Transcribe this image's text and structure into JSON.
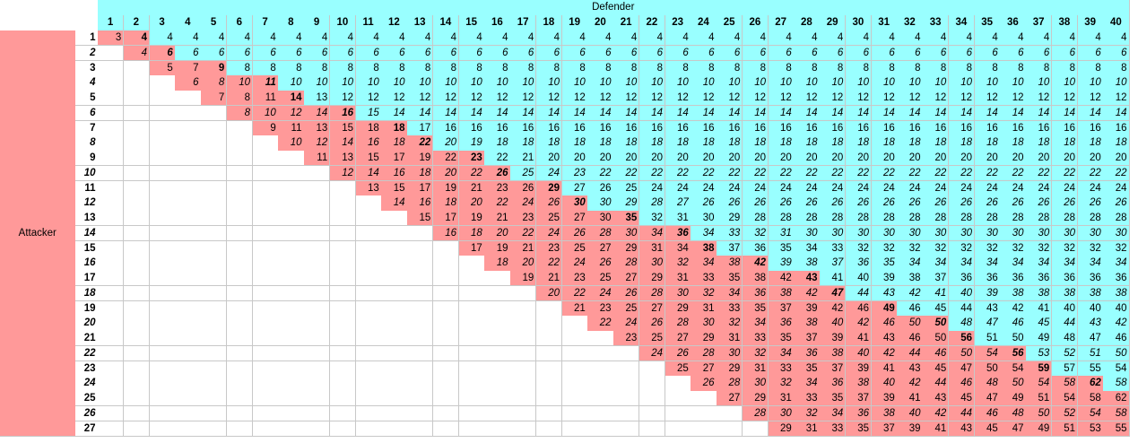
{
  "header": {
    "defender_label": "Defender",
    "attacker_label": "Attacker"
  },
  "colors": {
    "header_cyan": "#99ffff",
    "cyan": "#99ffff",
    "pink": "#ff9999",
    "white": "#ffffff"
  },
  "table": {
    "cols": [
      1,
      2,
      3,
      4,
      5,
      6,
      7,
      8,
      9,
      10,
      11,
      12,
      13,
      14,
      15,
      16,
      17,
      18,
      19,
      20,
      21,
      22,
      23,
      24,
      25,
      26,
      27,
      28,
      29,
      30,
      31,
      32,
      33,
      34,
      35,
      36,
      37,
      38,
      39,
      40
    ],
    "rows": [
      {
        "label": "1",
        "values": [
          "3",
          "4",
          "4",
          "4",
          "4",
          "4",
          "4",
          "4",
          "4",
          "4",
          "4",
          "4",
          "4",
          "4",
          "4",
          "4",
          "4",
          "4",
          "4",
          "4",
          "4",
          "4",
          "4",
          "4",
          "4",
          "4",
          "4",
          "4",
          "4",
          "4",
          "4",
          "4",
          "4",
          "4",
          "4",
          "4",
          "4",
          "4",
          "4",
          "4"
        ]
      },
      {
        "label": "2",
        "values": [
          "",
          "4",
          "6",
          "6",
          "6",
          "6",
          "6",
          "6",
          "6",
          "6",
          "6",
          "6",
          "6",
          "6",
          "6",
          "6",
          "6",
          "6",
          "6",
          "6",
          "6",
          "6",
          "6",
          "6",
          "6",
          "6",
          "6",
          "6",
          "6",
          "6",
          "6",
          "6",
          "6",
          "6",
          "6",
          "6",
          "6",
          "6",
          "6",
          "6"
        ]
      },
      {
        "label": "3",
        "values": [
          "",
          "",
          "5",
          "7",
          "9",
          "8",
          "8",
          "8",
          "8",
          "8",
          "8",
          "8",
          "8",
          "8",
          "8",
          "8",
          "8",
          "8",
          "8",
          "8",
          "8",
          "8",
          "8",
          "8",
          "8",
          "8",
          "8",
          "8",
          "8",
          "8",
          "8",
          "8",
          "8",
          "8",
          "8",
          "8",
          "8",
          "8",
          "8",
          "8"
        ]
      },
      {
        "label": "4",
        "values": [
          "",
          "",
          "",
          "6",
          "8",
          "10",
          "11",
          "10",
          "10",
          "10",
          "10",
          "10",
          "10",
          "10",
          "10",
          "10",
          "10",
          "10",
          "10",
          "10",
          "10",
          "10",
          "10",
          "10",
          "10",
          "10",
          "10",
          "10",
          "10",
          "10",
          "10",
          "10",
          "10",
          "10",
          "10",
          "10",
          "10",
          "10",
          "10",
          "10"
        ]
      },
      {
        "label": "5",
        "values": [
          "",
          "",
          "",
          "",
          "7",
          "8",
          "11",
          "14",
          "13",
          "12",
          "12",
          "12",
          "12",
          "12",
          "12",
          "12",
          "12",
          "12",
          "12",
          "12",
          "12",
          "12",
          "12",
          "12",
          "12",
          "12",
          "12",
          "12",
          "12",
          "12",
          "12",
          "12",
          "12",
          "12",
          "12",
          "12",
          "12",
          "12",
          "12",
          "12"
        ]
      },
      {
        "label": "6",
        "values": [
          "",
          "",
          "",
          "",
          "",
          "8",
          "10",
          "12",
          "14",
          "16",
          "15",
          "14",
          "14",
          "14",
          "14",
          "14",
          "14",
          "14",
          "14",
          "14",
          "14",
          "14",
          "14",
          "14",
          "14",
          "14",
          "14",
          "14",
          "14",
          "14",
          "14",
          "14",
          "14",
          "14",
          "14",
          "14",
          "14",
          "14",
          "14",
          "14"
        ]
      },
      {
        "label": "7",
        "values": [
          "",
          "",
          "",
          "",
          "",
          "",
          "9",
          "11",
          "13",
          "15",
          "18",
          "18",
          "17",
          "16",
          "16",
          "16",
          "16",
          "16",
          "16",
          "16",
          "16",
          "16",
          "16",
          "16",
          "16",
          "16",
          "16",
          "16",
          "16",
          "16",
          "16",
          "16",
          "16",
          "16",
          "16",
          "16",
          "16",
          "16",
          "16",
          "16"
        ]
      },
      {
        "label": "8",
        "values": [
          "",
          "",
          "",
          "",
          "",
          "",
          "",
          "10",
          "12",
          "14",
          "16",
          "18",
          "22",
          "20",
          "19",
          "18",
          "18",
          "18",
          "18",
          "18",
          "18",
          "18",
          "18",
          "18",
          "18",
          "18",
          "18",
          "18",
          "18",
          "18",
          "18",
          "18",
          "18",
          "18",
          "18",
          "18",
          "18",
          "18",
          "18",
          "18"
        ]
      },
      {
        "label": "9",
        "values": [
          "",
          "",
          "",
          "",
          "",
          "",
          "",
          "",
          "11",
          "13",
          "15",
          "17",
          "19",
          "22",
          "23",
          "22",
          "21",
          "20",
          "20",
          "20",
          "20",
          "20",
          "20",
          "20",
          "20",
          "20",
          "20",
          "20",
          "20",
          "20",
          "20",
          "20",
          "20",
          "20",
          "20",
          "20",
          "20",
          "20",
          "20",
          "20"
        ]
      },
      {
        "label": "10",
        "values": [
          "",
          "",
          "",
          "",
          "",
          "",
          "",
          "",
          "",
          "12",
          "14",
          "16",
          "18",
          "20",
          "22",
          "26",
          "25",
          "24",
          "23",
          "22",
          "22",
          "22",
          "22",
          "22",
          "22",
          "22",
          "22",
          "22",
          "22",
          "22",
          "22",
          "22",
          "22",
          "22",
          "22",
          "22",
          "22",
          "22",
          "22",
          "22"
        ]
      },
      {
        "label": "11",
        "values": [
          "",
          "",
          "",
          "",
          "",
          "",
          "",
          "",
          "",
          "",
          "13",
          "15",
          "17",
          "19",
          "21",
          "23",
          "26",
          "29",
          "27",
          "26",
          "25",
          "24",
          "24",
          "24",
          "24",
          "24",
          "24",
          "24",
          "24",
          "24",
          "24",
          "24",
          "24",
          "24",
          "24",
          "24",
          "24",
          "24",
          "24",
          "24"
        ]
      },
      {
        "label": "12",
        "values": [
          "",
          "",
          "",
          "",
          "",
          "",
          "",
          "",
          "",
          "",
          "",
          "14",
          "16",
          "18",
          "20",
          "22",
          "24",
          "26",
          "30",
          "30",
          "29",
          "28",
          "27",
          "26",
          "26",
          "26",
          "26",
          "26",
          "26",
          "26",
          "26",
          "26",
          "26",
          "26",
          "26",
          "26",
          "26",
          "26",
          "26",
          "26"
        ]
      },
      {
        "label": "13",
        "values": [
          "",
          "",
          "",
          "",
          "",
          "",
          "",
          "",
          "",
          "",
          "",
          "",
          "15",
          "17",
          "19",
          "21",
          "23",
          "25",
          "27",
          "30",
          "35",
          "32",
          "31",
          "30",
          "29",
          "28",
          "28",
          "28",
          "28",
          "28",
          "28",
          "28",
          "28",
          "28",
          "28",
          "28",
          "28",
          "28",
          "28",
          "28"
        ]
      },
      {
        "label": "14",
        "values": [
          "",
          "",
          "",
          "",
          "",
          "",
          "",
          "",
          "",
          "",
          "",
          "",
          "",
          "16",
          "18",
          "20",
          "22",
          "24",
          "26",
          "28",
          "30",
          "34",
          "36",
          "34",
          "33",
          "32",
          "31",
          "30",
          "30",
          "30",
          "30",
          "30",
          "30",
          "30",
          "30",
          "30",
          "30",
          "30",
          "30",
          "30"
        ]
      },
      {
        "label": "15",
        "values": [
          "",
          "",
          "",
          "",
          "",
          "",
          "",
          "",
          "",
          "",
          "",
          "",
          "",
          "",
          "17",
          "19",
          "21",
          "23",
          "25",
          "27",
          "29",
          "31",
          "34",
          "38",
          "37",
          "36",
          "35",
          "34",
          "33",
          "32",
          "32",
          "32",
          "32",
          "32",
          "32",
          "32",
          "32",
          "32",
          "32",
          "32"
        ]
      },
      {
        "label": "16",
        "values": [
          "",
          "",
          "",
          "",
          "",
          "",
          "",
          "",
          "",
          "",
          "",
          "",
          "",
          "",
          "",
          "18",
          "20",
          "22",
          "24",
          "26",
          "28",
          "30",
          "32",
          "34",
          "38",
          "42",
          "39",
          "38",
          "37",
          "36",
          "35",
          "34",
          "34",
          "34",
          "34",
          "34",
          "34",
          "34",
          "34",
          "34"
        ]
      },
      {
        "label": "17",
        "values": [
          "",
          "",
          "",
          "",
          "",
          "",
          "",
          "",
          "",
          "",
          "",
          "",
          "",
          "",
          "",
          "",
          "19",
          "21",
          "23",
          "25",
          "27",
          "29",
          "31",
          "33",
          "35",
          "38",
          "42",
          "43",
          "41",
          "40",
          "39",
          "38",
          "37",
          "36",
          "36",
          "36",
          "36",
          "36",
          "36",
          "36"
        ]
      },
      {
        "label": "18",
        "values": [
          "",
          "",
          "",
          "",
          "",
          "",
          "",
          "",
          "",
          "",
          "",
          "",
          "",
          "",
          "",
          "",
          "",
          "20",
          "22",
          "24",
          "26",
          "28",
          "30",
          "32",
          "34",
          "36",
          "38",
          "42",
          "47",
          "44",
          "43",
          "42",
          "41",
          "40",
          "39",
          "38",
          "38",
          "38",
          "38",
          "38"
        ]
      },
      {
        "label": "19",
        "values": [
          "",
          "",
          "",
          "",
          "",
          "",
          "",
          "",
          "",
          "",
          "",
          "",
          "",
          "",
          "",
          "",
          "",
          "",
          "21",
          "23",
          "25",
          "27",
          "29",
          "31",
          "33",
          "35",
          "37",
          "39",
          "42",
          "46",
          "49",
          "46",
          "45",
          "44",
          "43",
          "42",
          "41",
          "40",
          "40",
          "40"
        ]
      },
      {
        "label": "20",
        "values": [
          "",
          "",
          "",
          "",
          "",
          "",
          "",
          "",
          "",
          "",
          "",
          "",
          "",
          "",
          "",
          "",
          "",
          "",
          "",
          "22",
          "24",
          "26",
          "28",
          "30",
          "32",
          "34",
          "36",
          "38",
          "40",
          "42",
          "46",
          "50",
          "50",
          "48",
          "47",
          "46",
          "45",
          "44",
          "43",
          "42"
        ]
      },
      {
        "label": "21",
        "values": [
          "",
          "",
          "",
          "",
          "",
          "",
          "",
          "",
          "",
          "",
          "",
          "",
          "",
          "",
          "",
          "",
          "",
          "",
          "",
          "",
          "23",
          "25",
          "27",
          "29",
          "31",
          "33",
          "35",
          "37",
          "39",
          "41",
          "43",
          "46",
          "50",
          "56",
          "51",
          "50",
          "49",
          "48",
          "47",
          "46"
        ]
      },
      {
        "label": "22",
        "values": [
          "",
          "",
          "",
          "",
          "",
          "",
          "",
          "",
          "",
          "",
          "",
          "",
          "",
          "",
          "",
          "",
          "",
          "",
          "",
          "",
          "",
          "24",
          "26",
          "28",
          "30",
          "32",
          "34",
          "36",
          "38",
          "40",
          "42",
          "44",
          "46",
          "50",
          "54",
          "56",
          "53",
          "52",
          "51",
          "50"
        ]
      },
      {
        "label": "23",
        "values": [
          "",
          "",
          "",
          "",
          "",
          "",
          "",
          "",
          "",
          "",
          "",
          "",
          "",
          "",
          "",
          "",
          "",
          "",
          "",
          "",
          "",
          "",
          "25",
          "27",
          "29",
          "31",
          "33",
          "35",
          "37",
          "39",
          "41",
          "43",
          "45",
          "47",
          "50",
          "54",
          "59",
          "57",
          "55",
          "54"
        ]
      },
      {
        "label": "24",
        "values": [
          "",
          "",
          "",
          "",
          "",
          "",
          "",
          "",
          "",
          "",
          "",
          "",
          "",
          "",
          "",
          "",
          "",
          "",
          "",
          "",
          "",
          "",
          "",
          "26",
          "28",
          "30",
          "32",
          "34",
          "36",
          "38",
          "40",
          "42",
          "44",
          "46",
          "48",
          "50",
          "54",
          "58",
          "62",
          "58"
        ]
      },
      {
        "label": "25",
        "values": [
          "",
          "",
          "",
          "",
          "",
          "",
          "",
          "",
          "",
          "",
          "",
          "",
          "",
          "",
          "",
          "",
          "",
          "",
          "",
          "",
          "",
          "",
          "",
          "",
          "27",
          "29",
          "31",
          "33",
          "35",
          "37",
          "39",
          "41",
          "43",
          "45",
          "47",
          "49",
          "51",
          "54",
          "58",
          "62"
        ]
      },
      {
        "label": "26",
        "values": [
          "",
          "",
          "",
          "",
          "",
          "",
          "",
          "",
          "",
          "",
          "",
          "",
          "",
          "",
          "",
          "",
          "",
          "",
          "",
          "",
          "",
          "",
          "",
          "",
          "",
          "28",
          "30",
          "32",
          "34",
          "36",
          "38",
          "40",
          "42",
          "44",
          "46",
          "48",
          "50",
          "52",
          "54",
          "58"
        ]
      },
      {
        "label": "27",
        "values": [
          "",
          "",
          "",
          "",
          "",
          "",
          "",
          "",
          "",
          "",
          "",
          "",
          "",
          "",
          "",
          "",
          "",
          "",
          "",
          "",
          "",
          "",
          "",
          "",
          "",
          "",
          "29",
          "31",
          "33",
          "35",
          "37",
          "39",
          "41",
          "43",
          "45",
          "47",
          "49",
          "51",
          "53",
          "55"
        ]
      }
    ],
    "row_peaks": [
      2,
      3,
      5,
      7,
      8,
      10,
      12,
      13,
      15,
      16,
      18,
      19,
      21,
      23,
      24,
      26,
      28,
      29,
      31,
      33,
      34,
      36,
      37,
      39,
      41,
      42,
      44
    ]
  }
}
